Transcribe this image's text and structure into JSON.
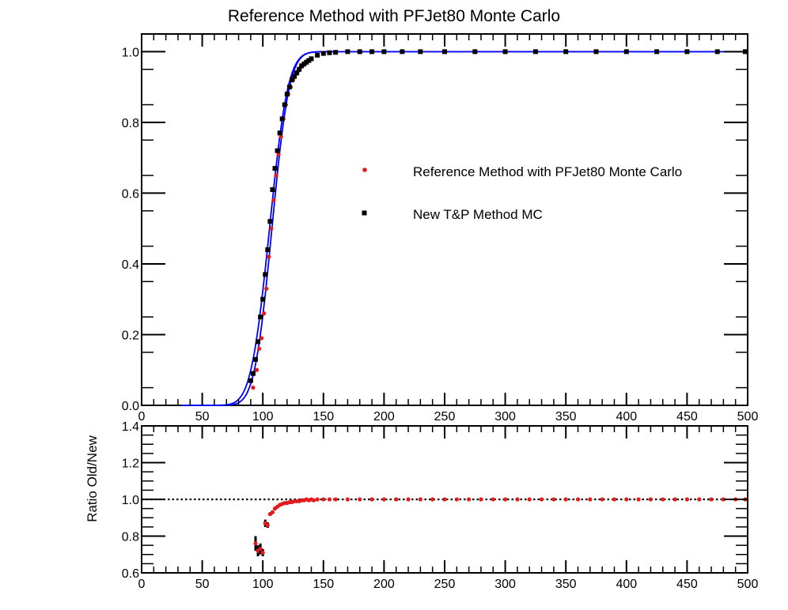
{
  "title": "Reference Method with PFJet80 Monte Carlo",
  "colors": {
    "reference": "#e41a1c",
    "new": "#000000",
    "fit": "#0000ff"
  },
  "chart_data": [
    {
      "type": "scatter",
      "panel": "efficiency",
      "title": "Reference Method with PFJet80 Monte Carlo",
      "xlim": [
        0,
        500
      ],
      "ylim": [
        0,
        1.05
      ],
      "x_ticks": [
        "0",
        "50",
        "100",
        "150",
        "200",
        "250",
        "300",
        "350",
        "400",
        "450",
        "500"
      ],
      "y_ticks": [
        "0.0",
        "0.2",
        "0.4",
        "0.6",
        "0.8",
        "1.0"
      ],
      "legend_position": "center-right",
      "series": [
        {
          "name": "Reference Method with PFJet80 Monte Carlo",
          "marker": "circle",
          "color": "#e41a1c",
          "x": [
            92,
            95,
            97,
            99,
            101,
            103,
            105,
            107,
            109,
            111,
            113,
            115,
            117,
            119,
            121,
            123,
            125,
            127,
            129,
            131,
            133,
            135,
            137,
            140,
            145,
            150,
            155,
            160,
            170,
            180,
            190,
            200,
            215,
            230,
            250,
            275,
            300,
            325,
            350,
            375,
            400,
            425,
            450,
            475,
            498
          ],
          "y": [
            0.05,
            0.1,
            0.16,
            0.19,
            0.26,
            0.33,
            0.42,
            0.5,
            0.58,
            0.65,
            0.71,
            0.76,
            0.81,
            0.85,
            0.88,
            0.9,
            0.92,
            0.935,
            0.945,
            0.955,
            0.962,
            0.97,
            0.975,
            0.98,
            0.99,
            0.995,
            0.997,
            0.998,
            1.0,
            1.0,
            1.0,
            1.0,
            1.0,
            1.0,
            1.0,
            1.0,
            1.0,
            1.0,
            1.0,
            1.0,
            1.0,
            1.0,
            1.0,
            1.0,
            1.0
          ]
        },
        {
          "name": "New T&P Method MC",
          "marker": "square",
          "color": "#000000",
          "x": [
            90,
            92,
            94,
            96,
            98,
            100,
            102,
            104,
            106,
            108,
            110,
            112,
            114,
            116,
            118,
            120,
            122,
            124,
            126,
            128,
            130,
            132,
            134,
            136,
            138,
            140,
            145,
            150,
            155,
            160,
            170,
            180,
            190,
            200,
            215,
            230,
            250,
            275,
            300,
            325,
            350,
            375,
            400,
            425,
            450,
            475,
            498
          ],
          "y": [
            0.07,
            0.09,
            0.13,
            0.18,
            0.25,
            0.3,
            0.37,
            0.44,
            0.52,
            0.61,
            0.67,
            0.72,
            0.77,
            0.81,
            0.85,
            0.88,
            0.9,
            0.92,
            0.93,
            0.94,
            0.95,
            0.96,
            0.965,
            0.97,
            0.975,
            0.98,
            0.99,
            0.995,
            0.997,
            0.998,
            1.0,
            1.0,
            1.0,
            1.0,
            1.0,
            1.0,
            1.0,
            1.0,
            1.0,
            1.0,
            1.0,
            1.0,
            1.0,
            1.0,
            1.0,
            1.0,
            1.0
          ]
        }
      ],
      "fits": [
        {
          "color": "#0000ff",
          "form": "erf",
          "midpoint": 107.5,
          "width": 16,
          "x_range": [
            33,
            500
          ]
        },
        {
          "color": "#0000ff",
          "form": "erf",
          "midpoint": 105.5,
          "width": 17,
          "x_range": [
            33,
            500
          ]
        }
      ]
    },
    {
      "type": "scatter",
      "panel": "ratio",
      "xlim": [
        0,
        500
      ],
      "ylim": [
        0.6,
        1.4
      ],
      "ylabel": "Ratio Old/New",
      "x_ticks": [
        "0",
        "50",
        "100",
        "150",
        "200",
        "250",
        "300",
        "350",
        "400",
        "450",
        "500"
      ],
      "y_ticks": [
        "0.6",
        "0.8",
        "1.0",
        "1.2",
        "1.4"
      ],
      "reference_line": 1.0,
      "series": [
        {
          "name": "Ratio",
          "color": "#e41a1c",
          "error_color": "#000000",
          "x": [
            94,
            96,
            98,
            100,
            102,
            104,
            106,
            108,
            110,
            112,
            114,
            116,
            118,
            120,
            122,
            124,
            126,
            128,
            130,
            132,
            134,
            136,
            138,
            140,
            142,
            145,
            150,
            155,
            160,
            170,
            180,
            190,
            200,
            210,
            220,
            230,
            240,
            250,
            260,
            270,
            280,
            290,
            300,
            310,
            320,
            330,
            340,
            350,
            360,
            370,
            380,
            390,
            400,
            410,
            420,
            430,
            440,
            450,
            460,
            470,
            480,
            490,
            498
          ],
          "y": [
            0.76,
            0.72,
            0.73,
            0.71,
            0.87,
            0.86,
            0.92,
            0.93,
            0.95,
            0.96,
            0.97,
            0.975,
            0.98,
            0.98,
            0.985,
            0.985,
            0.99,
            0.99,
            0.99,
            0.995,
            0.995,
            1.0,
            0.995,
            1.0,
            0.995,
            1.0,
            1.0,
            1.0,
            1.0,
            1.0,
            1.0,
            1.0,
            1.0,
            1.0,
            1.0,
            1.0,
            1.0,
            1.0,
            1.0,
            1.0,
            1.0,
            1.0,
            1.0,
            1.0,
            1.0,
            1.0,
            1.0,
            1.0,
            1.0,
            1.0,
            1.0,
            1.0,
            1.0,
            1.0,
            1.0,
            1.0,
            1.0,
            1.0,
            1.0,
            1.0,
            1.0,
            1.0,
            1.0
          ],
          "err": [
            0.04,
            0.03,
            0.03,
            0.02,
            0.02,
            0.015,
            0.01,
            0.01,
            0.01,
            0.008,
            0.006,
            0.005,
            0.005,
            0.004,
            0.004,
            0.003,
            0.003,
            0.003,
            0.002,
            0.002,
            0.002,
            0.002,
            0.002,
            0.002,
            0.002,
            0,
            0,
            0,
            0,
            0,
            0,
            0,
            0,
            0,
            0,
            0,
            0,
            0,
            0,
            0,
            0,
            0,
            0,
            0,
            0,
            0,
            0,
            0,
            0,
            0,
            0,
            0,
            0,
            0,
            0,
            0,
            0,
            0,
            0,
            0,
            0,
            0,
            0
          ]
        }
      ]
    }
  ]
}
